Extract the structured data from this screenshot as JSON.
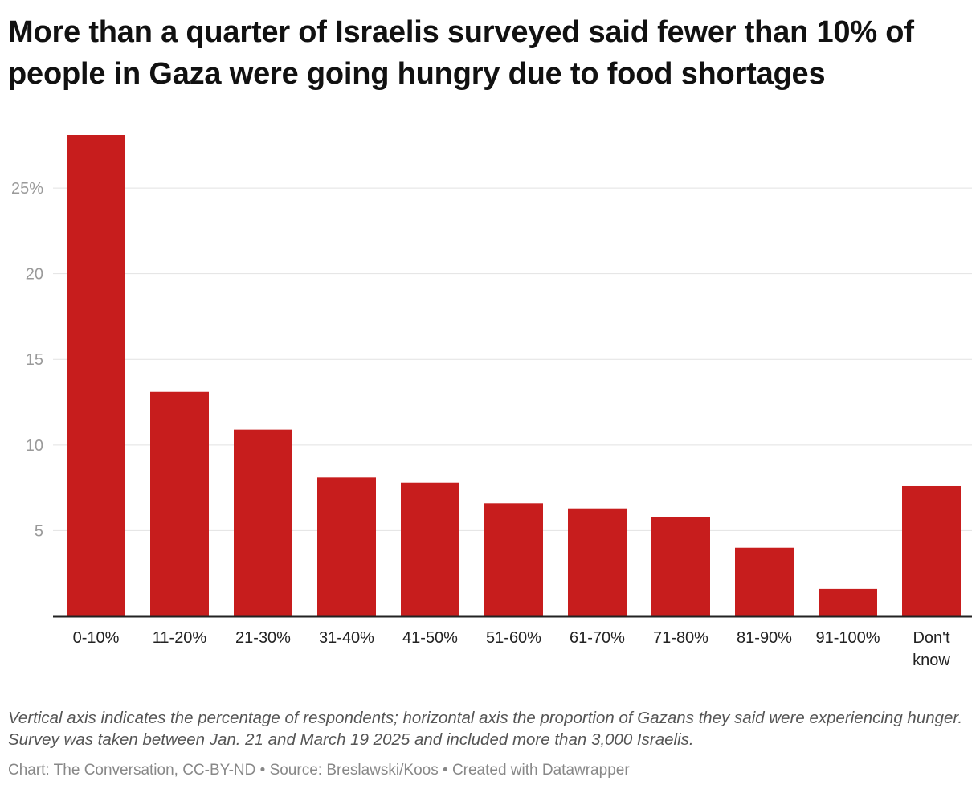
{
  "chart_data": {
    "type": "bar",
    "title": "More than a quarter of Israelis surveyed said fewer than 10% of people in Gaza were going hungry due to food shortages",
    "categories": [
      "0-10%",
      "11-20%",
      "21-30%",
      "31-40%",
      "41-50%",
      "51-60%",
      "61-70%",
      "71-80%",
      "81-90%",
      "91-100%",
      "Don't know"
    ],
    "category_lines": [
      [
        "0-10%"
      ],
      [
        "11-20%"
      ],
      [
        "21-30%"
      ],
      [
        "31-40%"
      ],
      [
        "41-50%"
      ],
      [
        "51-60%"
      ],
      [
        "61-70%"
      ],
      [
        "71-80%"
      ],
      [
        "81-90%"
      ],
      [
        "91-100%"
      ],
      [
        "Don't",
        "know"
      ]
    ],
    "values": [
      28.1,
      13.1,
      10.9,
      8.1,
      7.8,
      6.6,
      6.3,
      5.8,
      4.0,
      1.6,
      7.6
    ],
    "ylim": [
      0,
      28.1
    ],
    "yticks": [
      5,
      10,
      15,
      20,
      25
    ],
    "ytick_labels": [
      "5",
      "10",
      "15",
      "20",
      "25%"
    ],
    "xlabel": "",
    "ylabel": "",
    "grid": true,
    "bar_color": "#c71d1d"
  },
  "note": "Vertical axis indicates the percentage of respondents; horizontal axis the proportion of Gazans they said were experiencing hunger. Survey was taken between Jan. 21 and March 19 2025 and included more than 3,000 Israelis.",
  "credit": {
    "chart": "Chart: The Conversation, CC-BY-ND",
    "source": "Source: Breslawski/Koos",
    "tool": "Created with Datawrapper",
    "separator": " • "
  }
}
